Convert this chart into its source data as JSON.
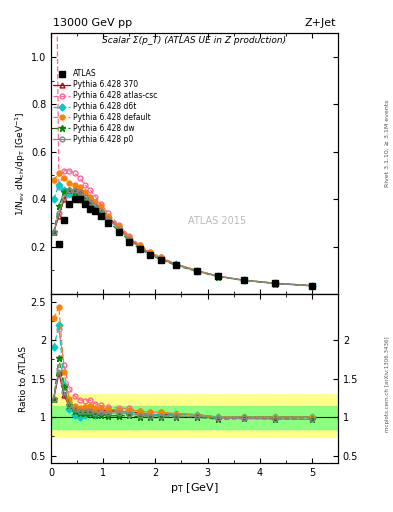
{
  "title_top": "13000 GeV pp",
  "title_right": "Z+Jet",
  "main_title": "Scalar Σ(p_T) (ATLAS UE in Z production)",
  "right_label": "Rivet 3.1.10, ≥ 3.1M events",
  "arxiv_label": "mcplots.cern.ch [arXiv:1306.3436]",
  "watermark": "ATLAS 2015",
  "atlas_x": [
    0.15,
    0.25,
    0.35,
    0.45,
    0.55,
    0.65,
    0.75,
    0.85,
    0.95,
    1.1,
    1.3,
    1.5,
    1.7,
    1.9,
    2.1,
    2.4,
    2.8,
    3.2,
    3.7,
    4.3,
    5.0
  ],
  "atlas_y": [
    0.21,
    0.31,
    0.38,
    0.4,
    0.4,
    0.38,
    0.36,
    0.35,
    0.33,
    0.3,
    0.26,
    0.22,
    0.19,
    0.165,
    0.145,
    0.12,
    0.095,
    0.075,
    0.058,
    0.045,
    0.035
  ],
  "p370_x": [
    0.05,
    0.15,
    0.25,
    0.35,
    0.45,
    0.55,
    0.65,
    0.75,
    0.85,
    0.95,
    1.1,
    1.3,
    1.5,
    1.7,
    1.9,
    2.1,
    2.4,
    2.8,
    3.2,
    3.7,
    4.3,
    5.0
  ],
  "p370_y": [
    0.26,
    0.33,
    0.4,
    0.43,
    0.44,
    0.44,
    0.43,
    0.4,
    0.38,
    0.36,
    0.325,
    0.28,
    0.235,
    0.2,
    0.17,
    0.15,
    0.125,
    0.098,
    0.075,
    0.058,
    0.045,
    0.035
  ],
  "csc_x": [
    0.05,
    0.15,
    0.25,
    0.35,
    0.45,
    0.55,
    0.65,
    0.75,
    0.85,
    0.95,
    1.1,
    1.3,
    1.5,
    1.7,
    1.9,
    2.1,
    2.4,
    2.8,
    3.2,
    3.7,
    4.3,
    5.0
  ],
  "csc_y": [
    2.5,
    0.45,
    0.52,
    0.52,
    0.51,
    0.49,
    0.46,
    0.44,
    0.41,
    0.38,
    0.34,
    0.29,
    0.245,
    0.205,
    0.175,
    0.155,
    0.125,
    0.098,
    0.075,
    0.058,
    0.045,
    0.035
  ],
  "d6t_x": [
    0.05,
    0.15,
    0.25,
    0.35,
    0.45,
    0.55,
    0.65,
    0.75,
    0.85,
    0.95,
    1.1,
    1.3,
    1.5,
    1.7,
    1.9,
    2.1,
    2.4,
    2.8,
    3.2,
    3.7,
    4.3,
    5.0
  ],
  "d6t_y": [
    0.4,
    0.46,
    0.44,
    0.42,
    0.41,
    0.4,
    0.39,
    0.38,
    0.36,
    0.35,
    0.32,
    0.28,
    0.235,
    0.2,
    0.17,
    0.15,
    0.125,
    0.098,
    0.075,
    0.058,
    0.045,
    0.035
  ],
  "default_x": [
    0.05,
    0.15,
    0.25,
    0.35,
    0.45,
    0.55,
    0.65,
    0.75,
    0.85,
    0.95,
    1.1,
    1.3,
    1.5,
    1.7,
    1.9,
    2.1,
    2.4,
    2.8,
    3.2,
    3.7,
    4.3,
    5.0
  ],
  "default_y": [
    0.48,
    0.51,
    0.49,
    0.47,
    0.46,
    0.45,
    0.43,
    0.41,
    0.39,
    0.37,
    0.33,
    0.285,
    0.24,
    0.205,
    0.175,
    0.155,
    0.125,
    0.098,
    0.075,
    0.058,
    0.045,
    0.035
  ],
  "dw_x": [
    0.05,
    0.15,
    0.25,
    0.35,
    0.45,
    0.55,
    0.65,
    0.75,
    0.85,
    0.95,
    1.1,
    1.3,
    1.5,
    1.7,
    1.9,
    2.1,
    2.4,
    2.8,
    3.2,
    3.7,
    4.3,
    5.0
  ],
  "dw_y": [
    0.26,
    0.37,
    0.43,
    0.44,
    0.43,
    0.42,
    0.4,
    0.38,
    0.36,
    0.34,
    0.305,
    0.265,
    0.225,
    0.19,
    0.165,
    0.145,
    0.12,
    0.095,
    0.073,
    0.057,
    0.044,
    0.034
  ],
  "p0_x": [
    0.05,
    0.15,
    0.25,
    0.35,
    0.45,
    0.55,
    0.65,
    0.75,
    0.85,
    0.95,
    1.1,
    1.3,
    1.5,
    1.7,
    1.9,
    2.1,
    2.4,
    2.8,
    3.2,
    3.7,
    4.3,
    5.0
  ],
  "p0_y": [
    0.26,
    0.34,
    0.41,
    0.44,
    0.44,
    0.43,
    0.41,
    0.39,
    0.37,
    0.35,
    0.315,
    0.275,
    0.23,
    0.195,
    0.168,
    0.148,
    0.122,
    0.096,
    0.074,
    0.057,
    0.044,
    0.034
  ],
  "colors": {
    "atlas": "#000000",
    "p370": "#c00000",
    "csc": "#ff6699",
    "d6t": "#00cccc",
    "default": "#ff8000",
    "dw": "#008800",
    "p0": "#888888"
  },
  "ylim_main": [
    0.0,
    1.1
  ],
  "ylim_ratio": [
    0.4,
    2.6
  ],
  "xlim": [
    0.0,
    5.5
  ],
  "band_yellow_lo": 0.75,
  "band_yellow_hi": 1.3,
  "band_green_lo": 0.85,
  "band_green_hi": 1.15
}
